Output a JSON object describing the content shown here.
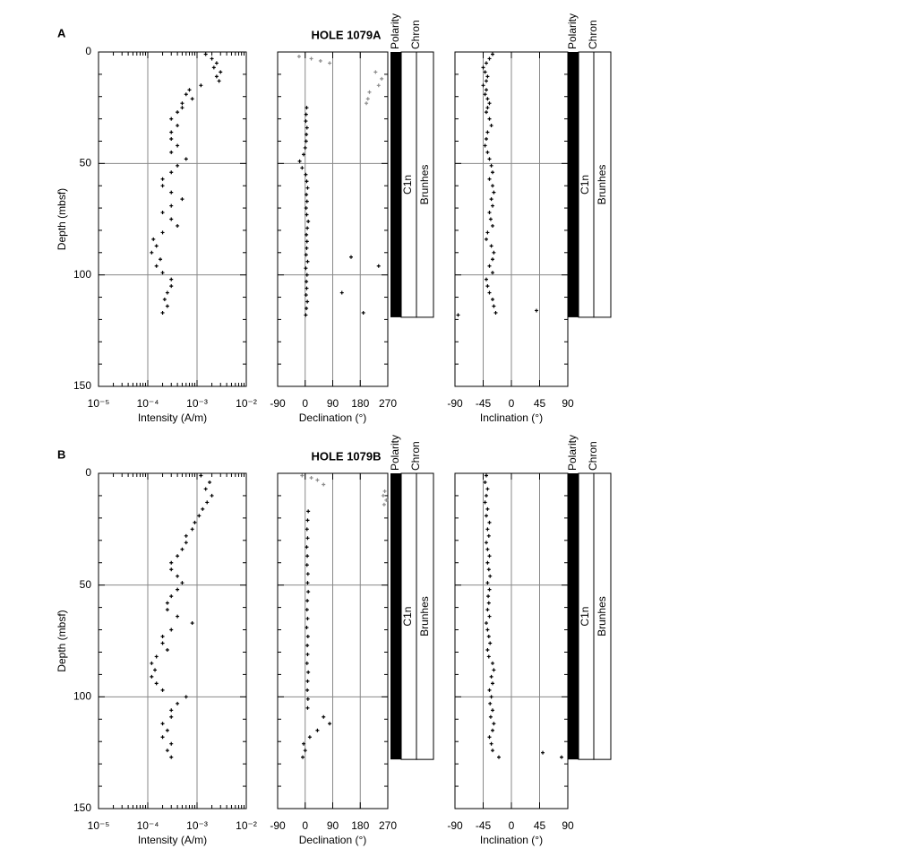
{
  "chart_data": [
    {
      "type": "scatter",
      "panel_label": "A",
      "xlabel": "Intensity (A/m)",
      "ylabel": "Depth (mbsf)",
      "log_x": true,
      "y_inverted": true,
      "grid": true,
      "ytick_labels": true,
      "xlim": [
        1e-05,
        0.01
      ],
      "xticks": [
        {
          "value": 1e-05,
          "label": "10⁻⁵"
        },
        {
          "value": 0.0001,
          "label": "10⁻⁴"
        },
        {
          "value": 0.001,
          "label": "10⁻³"
        },
        {
          "value": 0.01,
          "label": "10⁻²"
        }
      ],
      "minor_xticks": [
        2e-05,
        3e-05,
        4e-05,
        5e-05,
        6e-05,
        7e-05,
        8e-05,
        9e-05,
        0.0002,
        0.0003,
        0.0004,
        0.0005,
        0.0006,
        0.0007,
        0.0008,
        0.0009,
        0.002,
        0.003,
        0.004,
        0.005,
        0.006,
        0.007,
        0.008,
        0.009
      ],
      "ylim": [
        0,
        150
      ],
      "yticks": [
        0,
        50,
        100,
        150
      ],
      "minor_yticks": [
        10,
        20,
        30,
        40,
        60,
        70,
        80,
        90,
        110,
        120,
        130,
        140
      ],
      "series": [
        {
          "color": "#000000",
          "x": [
            0.0015,
            0.002,
            0.0025,
            0.0022,
            0.003,
            0.0025,
            0.0028,
            0.0012,
            0.0007,
            0.0006,
            0.0008,
            0.0005,
            0.0005,
            0.0004,
            0.0003,
            0.0004,
            0.0003,
            0.0003,
            0.0004,
            0.0003,
            0.0006,
            0.0004,
            0.0003,
            0.0002,
            0.0002,
            0.0003,
            0.0005,
            0.0003,
            0.0002,
            0.0003,
            0.0004,
            0.0002,
            0.00013,
            0.00015,
            0.00012,
            0.00018,
            0.00015,
            0.0002,
            0.0003,
            0.0003,
            0.00025,
            0.00022,
            0.00025,
            0.0002
          ],
          "values": [
            1,
            3,
            5,
            7,
            9,
            11,
            13,
            15,
            17,
            19,
            21,
            23,
            25,
            27,
            30,
            33,
            36,
            39,
            42,
            45,
            48,
            51,
            54,
            57,
            60,
            63,
            66,
            69,
            72,
            75,
            78,
            81,
            84,
            87,
            90,
            93,
            96,
            99,
            102,
            105,
            108,
            111,
            114,
            117
          ]
        }
      ]
    },
    {
      "type": "scatter",
      "title": "HOLE 1079A",
      "xlabel": "Declination (°)",
      "y_inverted": true,
      "grid": true,
      "ytick_labels": false,
      "xlim": [
        -90,
        270
      ],
      "xticks": [
        -90,
        0,
        90,
        180,
        270
      ],
      "ylim": [
        0,
        150
      ],
      "yticks": [
        0,
        50,
        100,
        150
      ],
      "minor_yticks": [
        10,
        20,
        30,
        40,
        60,
        70,
        80,
        90,
        110,
        120,
        130,
        140
      ],
      "series": [
        {
          "color": "#000000",
          "x": [
            5,
            3,
            2,
            6,
            4,
            3,
            0,
            -5,
            -18,
            -10,
            2,
            5,
            8,
            4,
            6,
            3,
            5,
            10,
            7,
            4,
            6,
            5,
            3,
            8,
            2,
            6,
            4,
            5,
            3,
            7,
            4,
            2,
            150,
            120,
            240,
            190
          ],
          "values": [
            25,
            28,
            31,
            34,
            37,
            40,
            43,
            46,
            49,
            52,
            55,
            58,
            61,
            64,
            67,
            70,
            73,
            76,
            79,
            82,
            85,
            88,
            91,
            94,
            97,
            100,
            103,
            106,
            109,
            112,
            115,
            118,
            92,
            108,
            96,
            117
          ]
        },
        {
          "color": "#8c8c8c",
          "x": [
            -20,
            20,
            50,
            80,
            230,
            250,
            240,
            210,
            205,
            200
          ],
          "values": [
            2,
            3,
            4,
            5,
            9,
            12,
            15,
            18,
            21,
            23
          ]
        }
      ],
      "polarity": {
        "labels": [
          "Polarity",
          "Chron"
        ],
        "chron": "C1n",
        "epoch": "Brunhes",
        "depth": [
          0,
          119
        ]
      }
    },
    {
      "type": "scatter",
      "xlabel": "Inclination (°)",
      "y_inverted": true,
      "grid": true,
      "ytick_labels": false,
      "xlim": [
        -90,
        90
      ],
      "xticks": [
        -90,
        -45,
        0,
        45,
        90
      ],
      "ylim": [
        0,
        150
      ],
      "yticks": [
        0,
        50,
        100,
        150
      ],
      "minor_yticks": [
        10,
        20,
        30,
        40,
        60,
        70,
        80,
        90,
        110,
        120,
        130,
        140
      ],
      "series": [
        {
          "color": "#000000",
          "x": [
            -30,
            -35,
            -40,
            -45,
            -42,
            -38,
            -40,
            -45,
            -40,
            -42,
            -38,
            -35,
            -38,
            -40,
            -35,
            -32,
            -38,
            -40,
            -42,
            -38,
            -35,
            -32,
            -30,
            -35,
            -30,
            -28,
            -32,
            -30,
            -35,
            -33,
            -30,
            -38,
            -40,
            -32,
            -28,
            -30,
            -35,
            -30,
            -40,
            -38,
            -35,
            -30,
            -28,
            -25,
            40,
            -85
          ],
          "values": [
            1,
            3,
            5,
            7,
            9,
            11,
            13,
            15,
            17,
            19,
            21,
            23,
            25,
            27,
            30,
            33,
            36,
            39,
            42,
            45,
            48,
            51,
            54,
            57,
            60,
            63,
            66,
            69,
            72,
            75,
            78,
            81,
            84,
            87,
            90,
            93,
            96,
            99,
            102,
            105,
            108,
            111,
            114,
            117,
            116,
            118
          ]
        }
      ],
      "polarity": {
        "labels": [
          "Polarity",
          "Chron"
        ],
        "chron": "C1n",
        "epoch": "Brunhes",
        "depth": [
          0,
          119
        ]
      }
    },
    {
      "type": "scatter",
      "panel_label": "B",
      "xlabel": "Intensity (A/m)",
      "ylabel": "Depth (mbsf)",
      "log_x": true,
      "y_inverted": true,
      "grid": true,
      "ytick_labels": true,
      "xlim": [
        1e-05,
        0.01
      ],
      "xticks": [
        {
          "value": 1e-05,
          "label": "10⁻⁵"
        },
        {
          "value": 0.0001,
          "label": "10⁻⁴"
        },
        {
          "value": 0.001,
          "label": "10⁻³"
        },
        {
          "value": 0.01,
          "label": "10⁻²"
        }
      ],
      "minor_xticks": [
        2e-05,
        3e-05,
        4e-05,
        5e-05,
        6e-05,
        7e-05,
        8e-05,
        9e-05,
        0.0002,
        0.0003,
        0.0004,
        0.0005,
        0.0006,
        0.0007,
        0.0008,
        0.0009,
        0.002,
        0.003,
        0.004,
        0.005,
        0.006,
        0.007,
        0.008,
        0.009
      ],
      "ylim": [
        0,
        150
      ],
      "yticks": [
        0,
        50,
        100,
        150
      ],
      "minor_yticks": [
        10,
        20,
        30,
        40,
        60,
        70,
        80,
        90,
        110,
        120,
        130,
        140
      ],
      "series": [
        {
          "color": "#000000",
          "x": [
            0.0012,
            0.0018,
            0.0015,
            0.002,
            0.0016,
            0.0013,
            0.0011,
            0.0009,
            0.0008,
            0.0006,
            0.0006,
            0.0005,
            0.0004,
            0.0003,
            0.0003,
            0.0004,
            0.0005,
            0.0004,
            0.0003,
            0.00025,
            0.00025,
            0.0004,
            0.0008,
            0.0003,
            0.0002,
            0.0002,
            0.00025,
            0.00015,
            0.00012,
            0.00014,
            0.00012,
            0.00015,
            0.0002,
            0.0006,
            0.0004,
            0.0003,
            0.0003,
            0.0002,
            0.00025,
            0.0002,
            0.0003,
            0.00025,
            0.0003
          ],
          "values": [
            1,
            4,
            7,
            10,
            13,
            16,
            19,
            22,
            25,
            28,
            31,
            34,
            37,
            40,
            43,
            46,
            49,
            52,
            55,
            58,
            61,
            64,
            67,
            70,
            73,
            76,
            79,
            82,
            85,
            88,
            91,
            94,
            97,
            100,
            103,
            106,
            109,
            112,
            115,
            118,
            121,
            124,
            127
          ]
        }
      ]
    },
    {
      "type": "scatter",
      "title": "HOLE 1079B",
      "xlabel": "Declination (°)",
      "y_inverted": true,
      "grid": true,
      "ytick_labels": false,
      "xlim": [
        -90,
        270
      ],
      "xticks": [
        -90,
        0,
        90,
        180,
        270
      ],
      "ylim": [
        0,
        150
      ],
      "yticks": [
        0,
        50,
        100,
        150
      ],
      "minor_yticks": [
        10,
        20,
        30,
        40,
        60,
        70,
        80,
        90,
        110,
        120,
        130,
        140
      ],
      "series": [
        {
          "color": "#000000",
          "x": [
            10,
            8,
            6,
            8,
            5,
            7,
            6,
            9,
            8,
            10,
            7,
            6,
            8,
            5,
            9,
            7,
            8,
            6,
            10,
            8,
            7,
            9,
            8,
            60,
            80,
            40,
            15,
            -5,
            0,
            -8
          ],
          "values": [
            17,
            21,
            25,
            29,
            33,
            37,
            41,
            45,
            49,
            53,
            57,
            61,
            65,
            69,
            73,
            77,
            81,
            85,
            89,
            93,
            97,
            101,
            105,
            109,
            112,
            115,
            118,
            121,
            124,
            127
          ]
        },
        {
          "color": "#8c8c8c",
          "x": [
            -10,
            20,
            40,
            60,
            260,
            255,
            265,
            258
          ],
          "values": [
            1,
            2,
            3,
            5,
            8,
            10,
            12,
            14
          ]
        }
      ],
      "polarity": {
        "labels": [
          "Polarity",
          "Chron"
        ],
        "chron": "C1n",
        "epoch": "Brunhes",
        "depth": [
          0,
          128
        ]
      }
    },
    {
      "type": "scatter",
      "xlabel": "Inclination (°)",
      "y_inverted": true,
      "grid": true,
      "ytick_labels": false,
      "xlim": [
        -90,
        90
      ],
      "xticks": [
        -90,
        -45,
        0,
        45,
        90
      ],
      "ylim": [
        0,
        150
      ],
      "yticks": [
        0,
        50,
        100,
        150
      ],
      "minor_yticks": [
        10,
        20,
        30,
        40,
        60,
        70,
        80,
        90,
        110,
        120,
        130,
        140
      ],
      "series": [
        {
          "color": "#000000",
          "x": [
            -40,
            -42,
            -38,
            -40,
            -42,
            -38,
            -40,
            -35,
            -38,
            -36,
            -40,
            -38,
            -35,
            -38,
            -36,
            -34,
            -38,
            -35,
            -37,
            -36,
            -38,
            -35,
            -40,
            -38,
            -36,
            -34,
            -38,
            -36,
            -30,
            -28,
            -32,
            -30,
            -35,
            -32,
            -34,
            -30,
            -33,
            -28,
            -30,
            -35,
            -32,
            -30,
            -20,
            50,
            80
          ],
          "values": [
            1,
            4,
            7,
            10,
            13,
            16,
            19,
            22,
            25,
            28,
            31,
            34,
            37,
            40,
            43,
            46,
            49,
            52,
            55,
            58,
            61,
            64,
            67,
            70,
            73,
            76,
            79,
            82,
            85,
            88,
            91,
            94,
            97,
            100,
            103,
            106,
            109,
            112,
            115,
            118,
            121,
            124,
            127,
            125,
            127
          ]
        }
      ],
      "polarity": {
        "labels": [
          "Polarity",
          "Chron"
        ],
        "chron": "C1n",
        "epoch": "Brunhes",
        "depth": [
          0,
          128
        ]
      }
    }
  ]
}
